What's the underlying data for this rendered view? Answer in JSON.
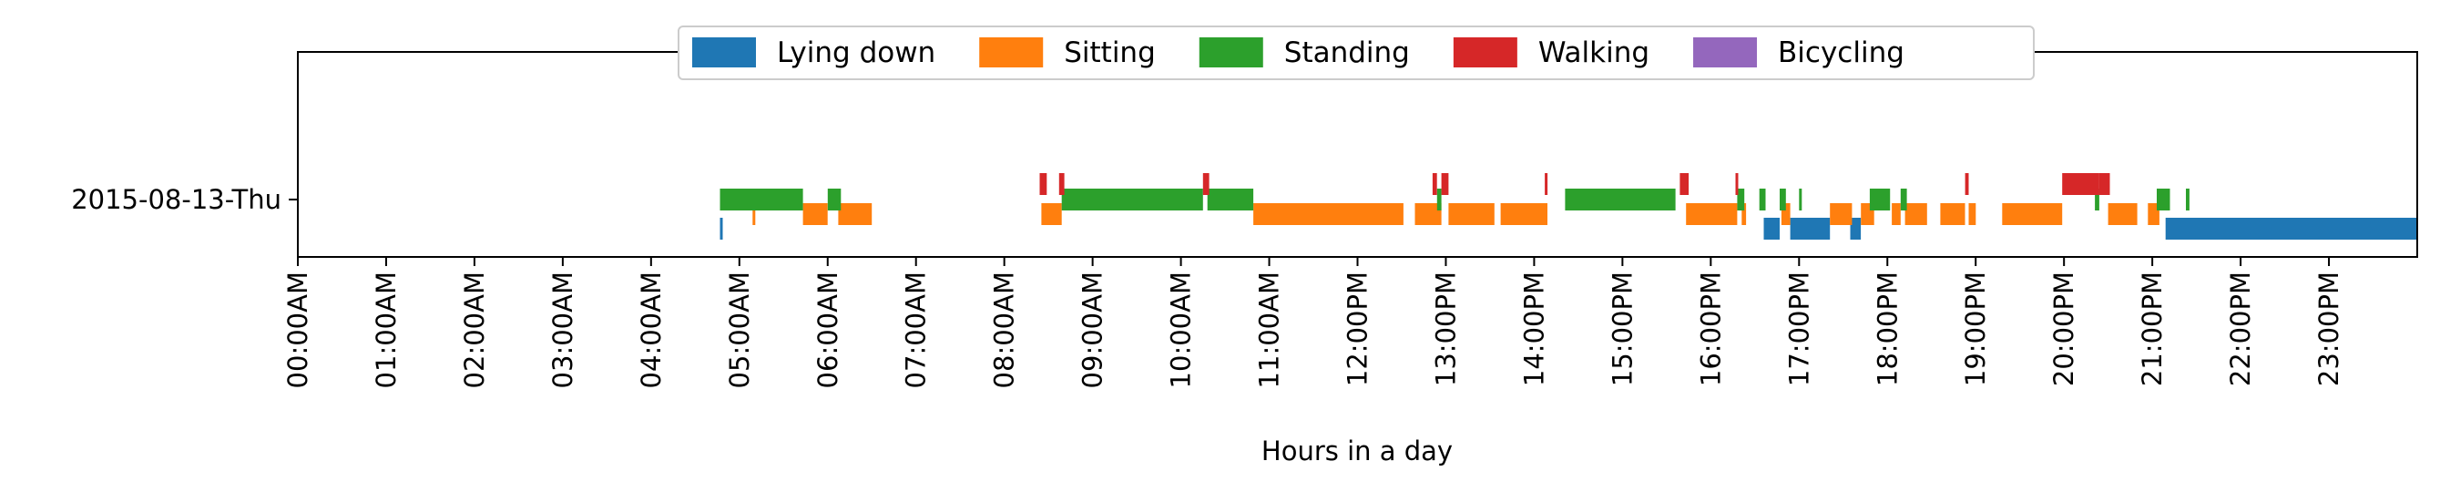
{
  "chart_data": {
    "type": "timeline",
    "title": "",
    "xlabel": "Hours in a day",
    "ylabel": "",
    "xlim": [
      0,
      24
    ],
    "grid": false,
    "legend_position": "top-center",
    "rows": [
      "2015-08-13-Thu"
    ],
    "x_ticks": [
      "00:00AM",
      "01:00AM",
      "02:00AM",
      "03:00AM",
      "04:00AM",
      "05:00AM",
      "06:00AM",
      "07:00AM",
      "08:00AM",
      "09:00AM",
      "10:00AM",
      "11:00AM",
      "12:00PM",
      "13:00PM",
      "14:00PM",
      "15:00PM",
      "16:00PM",
      "17:00PM",
      "18:00PM",
      "19:00PM",
      "20:00PM",
      "21:00PM",
      "22:00PM",
      "23:00PM"
    ],
    "series": [
      {
        "name": "Lying down",
        "color": "#1f77b4",
        "intervals": [
          [
            4.78,
            4.8
          ],
          [
            16.6,
            16.78
          ],
          [
            16.9,
            17.35
          ],
          [
            17.58,
            17.7
          ],
          [
            21.15,
            21.38
          ],
          [
            21.38,
            24.0
          ]
        ]
      },
      {
        "name": "Sitting",
        "color": "#ff7f0e",
        "intervals": [
          [
            5.15,
            5.18
          ],
          [
            5.72,
            6.0
          ],
          [
            6.12,
            6.5
          ],
          [
            8.42,
            8.65
          ],
          [
            10.82,
            12.52
          ],
          [
            12.65,
            12.95
          ],
          [
            13.03,
            13.55
          ],
          [
            13.62,
            14.15
          ],
          [
            15.72,
            16.3
          ],
          [
            16.35,
            16.4
          ],
          [
            16.8,
            16.9
          ],
          [
            17.35,
            17.6
          ],
          [
            17.7,
            17.85
          ],
          [
            18.05,
            18.15
          ],
          [
            18.2,
            18.45
          ],
          [
            18.6,
            18.88
          ],
          [
            18.92,
            19.0
          ],
          [
            19.3,
            19.98
          ],
          [
            20.5,
            20.83
          ],
          [
            20.95,
            21.08
          ]
        ],
        "pattern_row": "lower"
      },
      {
        "name": "Standing",
        "color": "#2ca02c",
        "intervals": [
          [
            4.78,
            5.72
          ],
          [
            6.0,
            6.15
          ],
          [
            8.65,
            10.25
          ],
          [
            10.3,
            10.82
          ],
          [
            12.9,
            12.95
          ],
          [
            14.35,
            15.6
          ],
          [
            16.3,
            16.38
          ],
          [
            16.55,
            16.62
          ],
          [
            16.78,
            16.85
          ],
          [
            17.0,
            17.02
          ],
          [
            17.8,
            18.03
          ],
          [
            18.15,
            18.22
          ],
          [
            20.35,
            20.4
          ],
          [
            21.05,
            21.2
          ],
          [
            21.38,
            21.42
          ]
        ]
      },
      {
        "name": "Walking",
        "color": "#d62728",
        "intervals": [
          [
            8.4,
            8.48
          ],
          [
            8.62,
            8.68
          ],
          [
            10.25,
            10.32
          ],
          [
            12.85,
            12.9
          ],
          [
            12.95,
            13.03
          ],
          [
            14.12,
            14.15
          ],
          [
            15.65,
            15.75
          ],
          [
            16.28,
            16.3
          ],
          [
            18.88,
            18.92
          ],
          [
            19.98,
            20.4
          ],
          [
            20.4,
            20.52
          ]
        ]
      },
      {
        "name": "Bicycling",
        "color": "#9467bd",
        "intervals": []
      }
    ]
  }
}
